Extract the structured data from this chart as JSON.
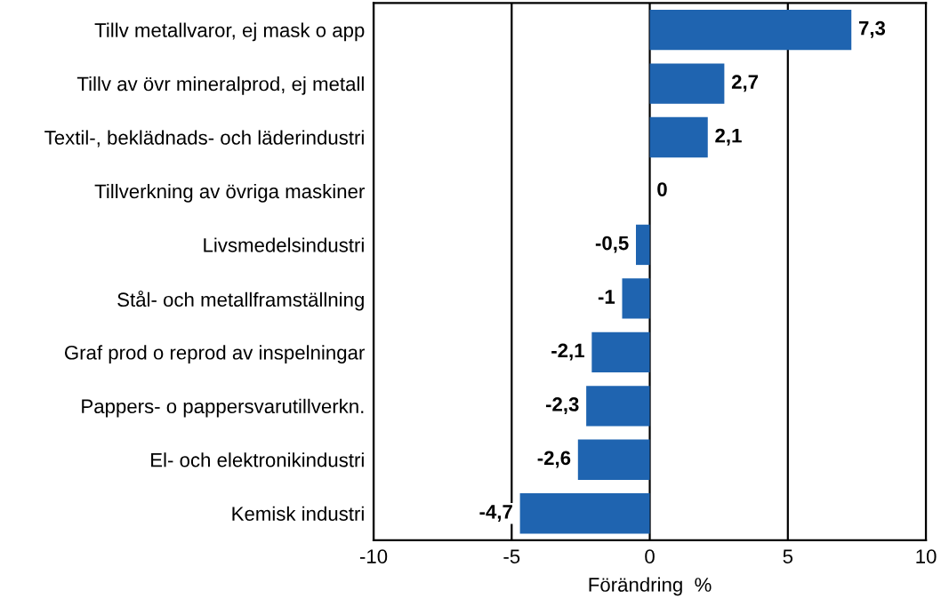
{
  "chart_data": {
    "type": "bar",
    "orientation": "horizontal",
    "xlabel": "Förändring  %",
    "categories": [
      "Tillv metallvaror, ej mask o app",
      "Tillv av övr mineralprod, ej metall",
      "Textil-, beklädnads- och läderindustri",
      "Tillverkning av övriga maskiner",
      "Livsmedelsindustri",
      "Stål- och metallframställning",
      "Graf prod o reprod av inspelningar",
      "Pappers- o pappersvarutillverkn.",
      "El- och elektronikindustri",
      "Kemisk industri"
    ],
    "values": [
      7.3,
      2.7,
      2.1,
      0,
      -0.5,
      -1,
      -2.1,
      -2.3,
      -2.6,
      -4.7
    ],
    "value_labels": [
      "7,3",
      "2,7",
      "2,1",
      "0",
      "-0,5",
      "-1",
      "-2,1",
      "-2,3",
      "-2,6",
      "-4,7"
    ],
    "color": "#1f64b0",
    "xlim": [
      -10,
      10
    ],
    "xticks": [
      -10,
      -5,
      0,
      5,
      10
    ],
    "grid": "x"
  }
}
